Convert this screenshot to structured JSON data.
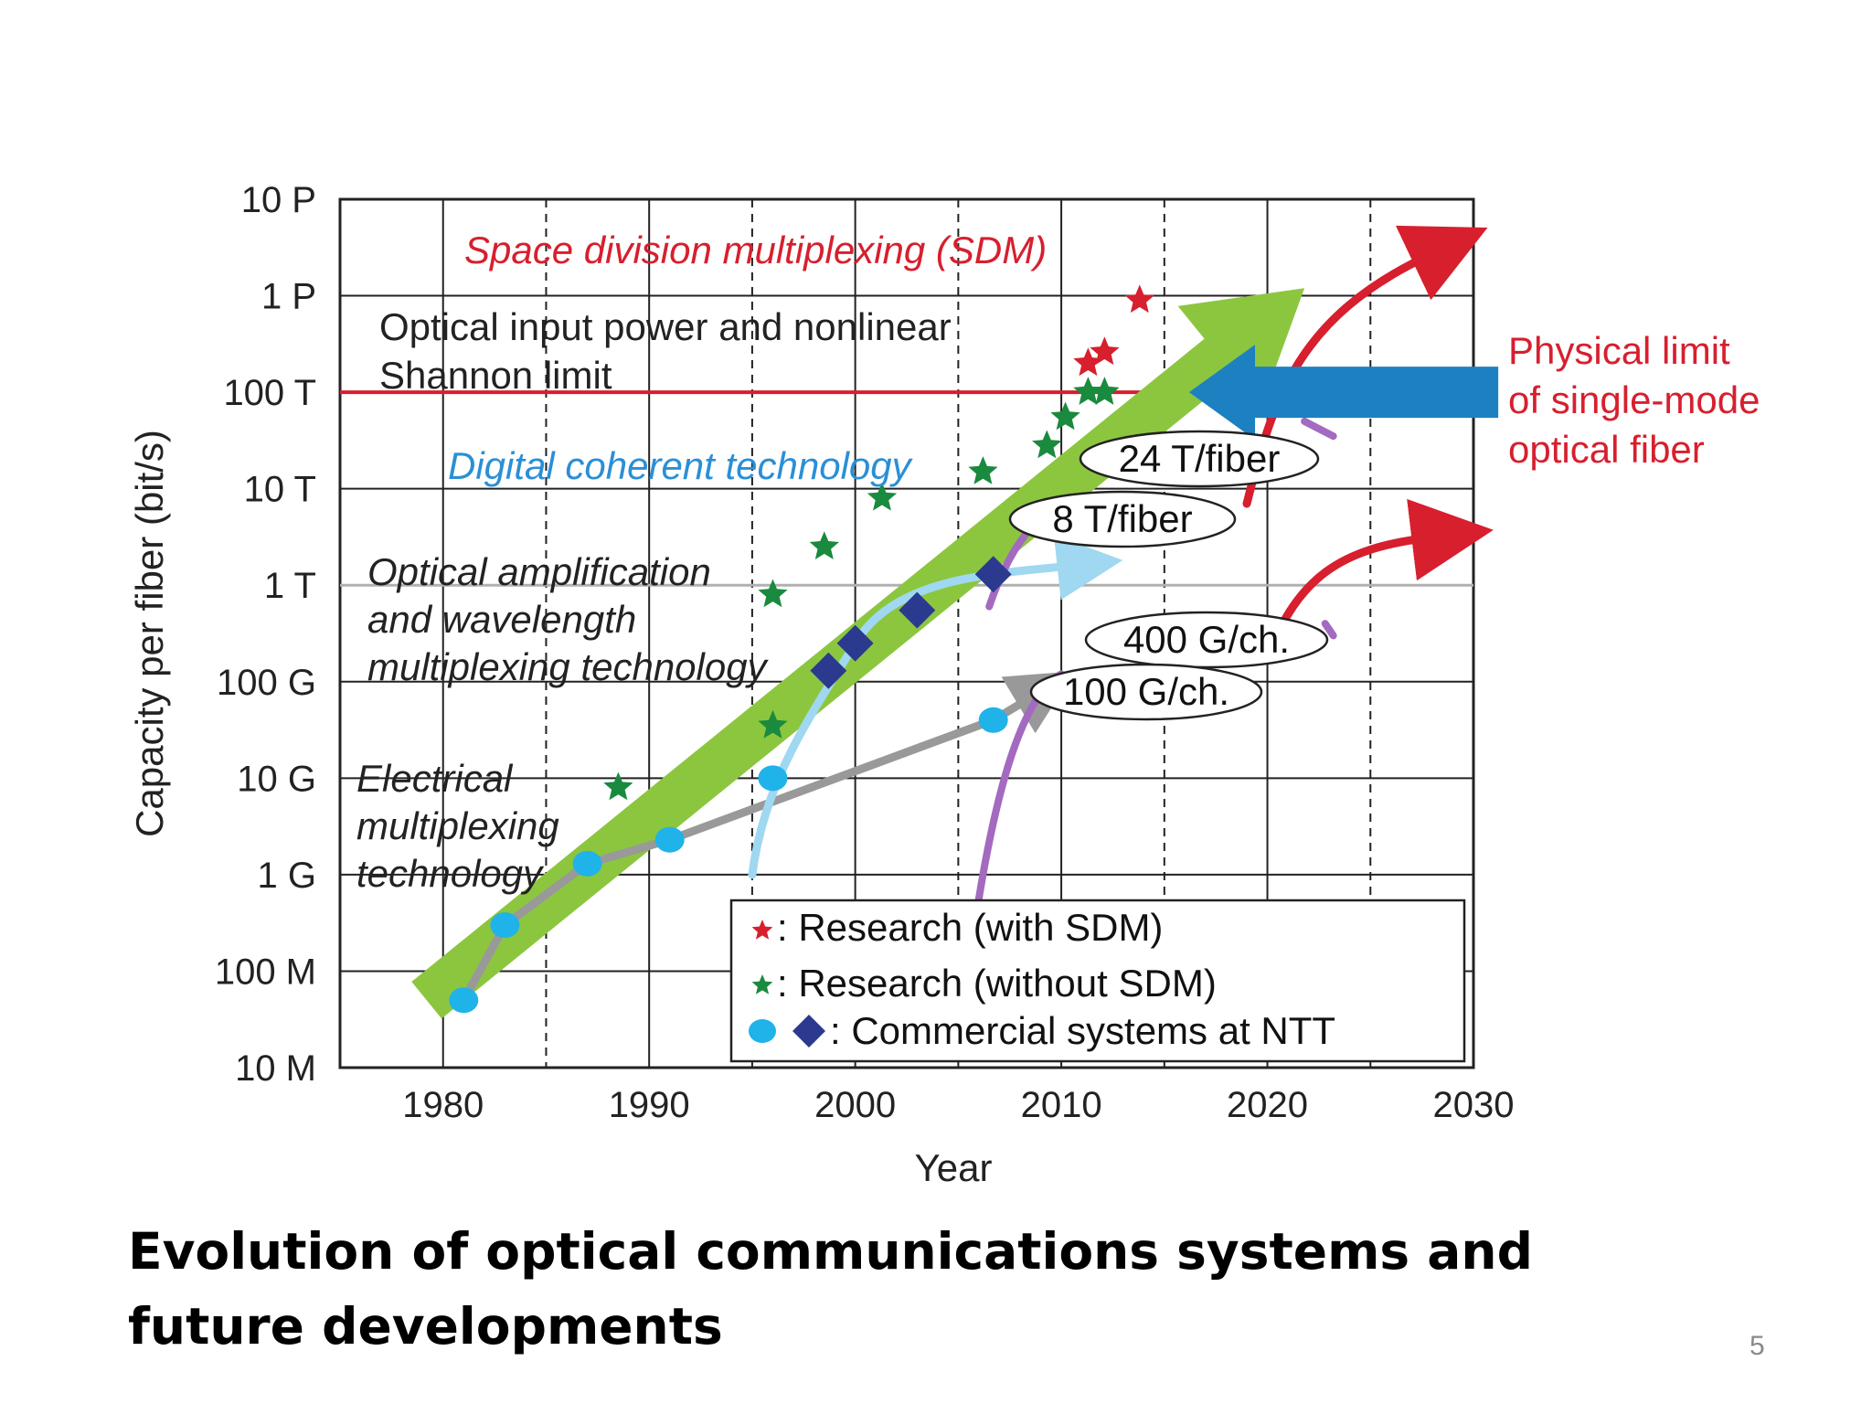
{
  "slide": {
    "caption": "Evolution of optical communications systems and future developments",
    "page_number": "5"
  },
  "colors": {
    "red": "#d71f2e",
    "green_star": "#1a8a3e",
    "green_arrow": "#8cc63f",
    "commercial_circle": "#1fb3ea",
    "commercial_diamond": "#2b3a8f",
    "blue_text": "#2a8fd6",
    "gray_line": "#999999",
    "light_blue_line": "#9fd8f0",
    "purple": "#a36ac0",
    "limit_arrow": "#1c80c1"
  },
  "chart_data": {
    "type": "scatter",
    "x_axis": {
      "label": "Year",
      "range": [
        1975,
        2030
      ],
      "ticks": [
        1980,
        1990,
        2000,
        2010,
        2020,
        2030
      ],
      "tick_labels": [
        "1980",
        "1990",
        "2000",
        "2010",
        "2020",
        "2030"
      ]
    },
    "y_axis": {
      "label": "Capacity per fiber (bit/s)",
      "scale": "log",
      "range": [
        10000000.0,
        1e+16
      ],
      "ticks": [
        10000000.0,
        100000000.0,
        1000000000.0,
        10000000000.0,
        100000000000.0,
        1000000000000.0,
        10000000000000.0,
        100000000000000.0,
        1000000000000000.0,
        1e+16
      ],
      "tick_labels": [
        "10 M",
        "100 M",
        "1 G",
        "10 G",
        "100 G",
        "1 T",
        "10 T",
        "100 T",
        "1 P",
        "10 P"
      ]
    },
    "grid": true,
    "series": [
      {
        "name": "Research (with SDM)",
        "marker": "star",
        "color": "#d71f2e",
        "points": [
          [
            2011.3,
            200000000000000.0
          ],
          [
            2012.1,
            260000000000000.0
          ],
          [
            2013.8,
            900000000000000.0
          ]
        ]
      },
      {
        "name": "Research (without SDM)",
        "marker": "star",
        "color": "#1a8a3e",
        "points": [
          [
            1988.5,
            8000000000.0
          ],
          [
            1996,
            35000000000.0
          ],
          [
            1996,
            800000000000.0
          ],
          [
            1998.5,
            2500000000000.0
          ],
          [
            2001.3,
            8000000000000.0
          ],
          [
            2006.2,
            15000000000000.0
          ],
          [
            2009.3,
            28000000000000.0
          ],
          [
            2010.2,
            55000000000000.0
          ],
          [
            2011.3,
            100000000000000.0
          ],
          [
            2012.1,
            100000000000000.0
          ]
        ]
      },
      {
        "name": "Commercial systems at NTT",
        "marker": "circle",
        "color": "#1fb3ea",
        "points": [
          [
            1981,
            50000000.0
          ],
          [
            1983,
            300000000.0
          ],
          [
            1987,
            1300000000.0
          ],
          [
            1991,
            2300000000.0
          ],
          [
            1996,
            10000000000.0
          ],
          [
            2006.7,
            40000000000.0
          ]
        ]
      },
      {
        "name": "Commercial systems at NTT",
        "marker": "diamond",
        "color": "#2b3a8f",
        "points": [
          [
            1998.7,
            130000000000.0
          ],
          [
            2000,
            250000000000.0
          ],
          [
            2003,
            550000000000.0
          ],
          [
            2006.7,
            1300000000000.0
          ]
        ]
      }
    ],
    "annotations": {
      "sdm": "Space division multiplexing (SDM)",
      "shannon_1": "Optical input power and nonlinear",
      "shannon_2": "Shannon limit",
      "digital": "Digital coherent technology",
      "amp_1": "Optical amplification",
      "amp_2": "and wavelength",
      "amp_3": "multiplexing technology",
      "elec_1": "Electrical",
      "elec_2": "multiplexing",
      "elec_3": "technology",
      "phys_1": "Physical limit",
      "phys_2": "of single-mode",
      "phys_3": "optical fiber",
      "b24": "24 T/fiber",
      "b8": "8 T/fiber",
      "b400": "400 G/ch.",
      "b100": "100 G/ch."
    },
    "legend": {
      "position": "bottom-right",
      "with_sdm": ": Research (with SDM)",
      "without_sdm": ": Research (without SDM)",
      "commercial": ": Commercial systems at NTT"
    }
  }
}
